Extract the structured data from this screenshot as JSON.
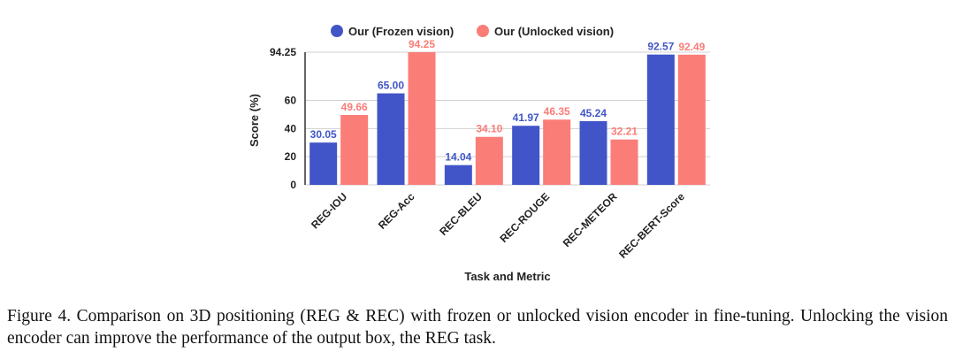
{
  "chart_data": {
    "type": "bar",
    "categories": [
      "REG-IOU",
      "REG-Acc",
      "REC-BLEU",
      "REC-ROUGE",
      "REC-METEOR",
      "REC-BERT-Score"
    ],
    "series": [
      {
        "name": "Our (Frozen vision)",
        "color": "#4155c8",
        "values": [
          30.05,
          65.0,
          14.04,
          41.97,
          45.24,
          92.57
        ],
        "value_labels": [
          "30.05",
          "65.00",
          "14.04",
          "41.97",
          "45.24",
          "92.57"
        ]
      },
      {
        "name": "Our (Unlocked vision)",
        "color": "#fa7d78",
        "values": [
          49.66,
          94.25,
          34.1,
          46.35,
          32.21,
          92.49
        ],
        "value_labels": [
          "49.66",
          "94.25",
          "34.10",
          "46.35",
          "32.21",
          "92.49"
        ]
      }
    ],
    "xlabel": "Task and Metric",
    "ylabel": "Score (%)",
    "ylim": [
      0,
      94.25
    ],
    "yticks": [
      0,
      20,
      40,
      60,
      94.25
    ],
    "ytick_labels": [
      "0",
      "20",
      "40",
      "60",
      "94.25"
    ],
    "grid": "horizontal",
    "legend": "top"
  },
  "caption": "Figure 4. Comparison on 3D positioning (REG & REC) with frozen or unlocked vision encoder in fine-tuning. Unlocking the vision encoder can improve the performance of the output box, the REG task."
}
